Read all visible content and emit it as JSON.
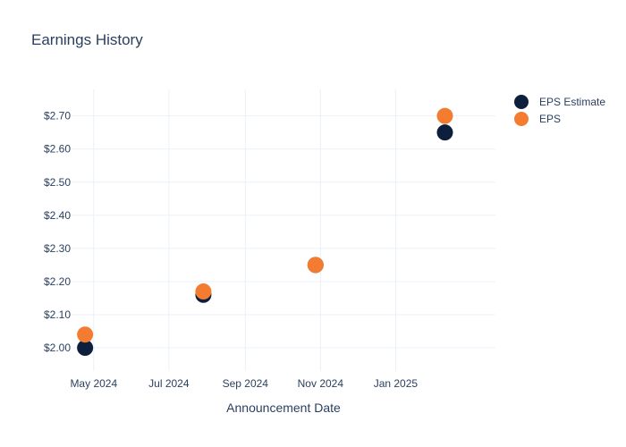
{
  "chart_data": {
    "type": "scatter",
    "title": "Earnings History",
    "xlabel": "Announcement Date",
    "ylabel": "",
    "x_ticks": [
      {
        "date": "2024-05-01",
        "label": "May 2024"
      },
      {
        "date": "2024-07-01",
        "label": "Jul 2024"
      },
      {
        "date": "2024-09-01",
        "label": "Sep 2024"
      },
      {
        "date": "2024-11-01",
        "label": "Nov 2024"
      },
      {
        "date": "2025-01-01",
        "label": "Jan 2025"
      }
    ],
    "xlim": [
      "2024-04-13",
      "2025-03-23"
    ],
    "y_ticks": [
      {
        "value": 2.0,
        "label": "$2.00"
      },
      {
        "value": 2.1,
        "label": "$2.10"
      },
      {
        "value": 2.2,
        "label": "$2.20"
      },
      {
        "value": 2.3,
        "label": "$2.30"
      },
      {
        "value": 2.4,
        "label": "$2.40"
      },
      {
        "value": 2.5,
        "label": "$2.50"
      },
      {
        "value": 2.6,
        "label": "$2.60"
      },
      {
        "value": 2.7,
        "label": "$2.70"
      }
    ],
    "ylim": [
      1.93,
      2.78
    ],
    "grid": true,
    "legend_position": "top-right",
    "series": [
      {
        "name": "EPS Estimate",
        "color": "#0d1f3c",
        "points": [
          {
            "x": "2024-04-24",
            "y": 2.0
          },
          {
            "x": "2024-07-29",
            "y": 2.16
          },
          {
            "x": "2024-10-28",
            "y": 2.25
          },
          {
            "x": "2025-02-10",
            "y": 2.65
          }
        ]
      },
      {
        "name": "EPS",
        "color": "#f47c30",
        "points": [
          {
            "x": "2024-04-24",
            "y": 2.04
          },
          {
            "x": "2024-07-29",
            "y": 2.17
          },
          {
            "x": "2024-10-28",
            "y": 2.25
          },
          {
            "x": "2025-02-10",
            "y": 2.7
          }
        ]
      }
    ]
  }
}
